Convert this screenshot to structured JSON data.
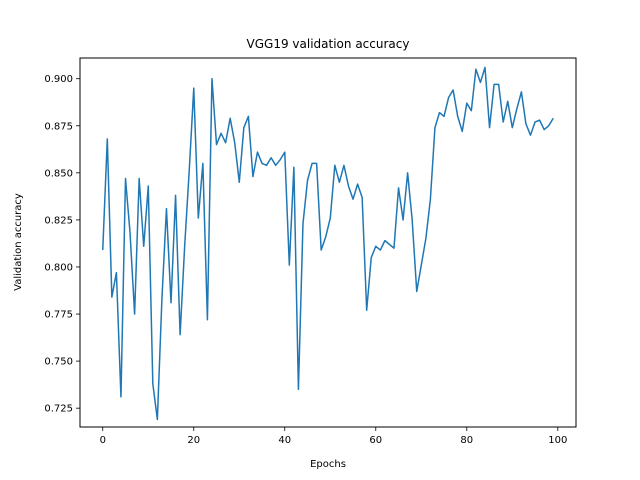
{
  "chart_data": {
    "type": "line",
    "title": "VGG19 validation accuracy",
    "xlabel": "Epochs",
    "ylabel": "Validation accuracy",
    "xlim": [
      -5,
      104
    ],
    "ylim": [
      0.715,
      0.911
    ],
    "xticks": [
      0,
      20,
      40,
      60,
      80,
      100
    ],
    "yticks": [
      0.725,
      0.75,
      0.775,
      0.8,
      0.825,
      0.85,
      0.875,
      0.9
    ],
    "ytick_labels": [
      "0.725",
      "0.750",
      "0.775",
      "0.800",
      "0.825",
      "0.850",
      "0.875",
      "0.900"
    ],
    "grid": false,
    "color": "#1f77b4",
    "x": [
      0,
      1,
      2,
      3,
      4,
      5,
      6,
      7,
      8,
      9,
      10,
      11,
      12,
      13,
      14,
      15,
      16,
      17,
      18,
      19,
      20,
      21,
      22,
      23,
      24,
      25,
      26,
      27,
      28,
      29,
      30,
      31,
      32,
      33,
      34,
      35,
      36,
      37,
      38,
      39,
      40,
      41,
      42,
      43,
      44,
      45,
      46,
      47,
      48,
      49,
      50,
      51,
      52,
      53,
      54,
      55,
      56,
      57,
      58,
      59,
      60,
      61,
      62,
      63,
      64,
      65,
      66,
      67,
      68,
      69,
      70,
      71,
      72,
      73,
      74,
      75,
      76,
      77,
      78,
      79,
      80,
      81,
      82,
      83,
      84,
      85,
      86,
      87,
      88,
      89,
      90,
      91,
      92,
      93,
      94,
      95,
      96,
      97,
      98,
      99
    ],
    "y": [
      0.809,
      0.868,
      0.784,
      0.797,
      0.731,
      0.847,
      0.818,
      0.775,
      0.847,
      0.811,
      0.843,
      0.738,
      0.719,
      0.783,
      0.831,
      0.781,
      0.838,
      0.764,
      0.811,
      0.851,
      0.895,
      0.826,
      0.855,
      0.772,
      0.9,
      0.865,
      0.871,
      0.866,
      0.879,
      0.866,
      0.845,
      0.874,
      0.88,
      0.848,
      0.861,
      0.855,
      0.854,
      0.858,
      0.854,
      0.857,
      0.861,
      0.801,
      0.853,
      0.735,
      0.823,
      0.846,
      0.855,
      0.855,
      0.809,
      0.816,
      0.826,
      0.854,
      0.845,
      0.854,
      0.843,
      0.836,
      0.844,
      0.837,
      0.777,
      0.805,
      0.811,
      0.809,
      0.814,
      0.812,
      0.81,
      0.842,
      0.825,
      0.85,
      0.825,
      0.787,
      0.801,
      0.815,
      0.836,
      0.874,
      0.882,
      0.88,
      0.89,
      0.894,
      0.88,
      0.872,
      0.887,
      0.883,
      0.905,
      0.898,
      0.906,
      0.874,
      0.897,
      0.897,
      0.877,
      0.888,
      0.874,
      0.884,
      0.893,
      0.876,
      0.87,
      0.877,
      0.878,
      0.873,
      0.875,
      0.879
    ]
  }
}
